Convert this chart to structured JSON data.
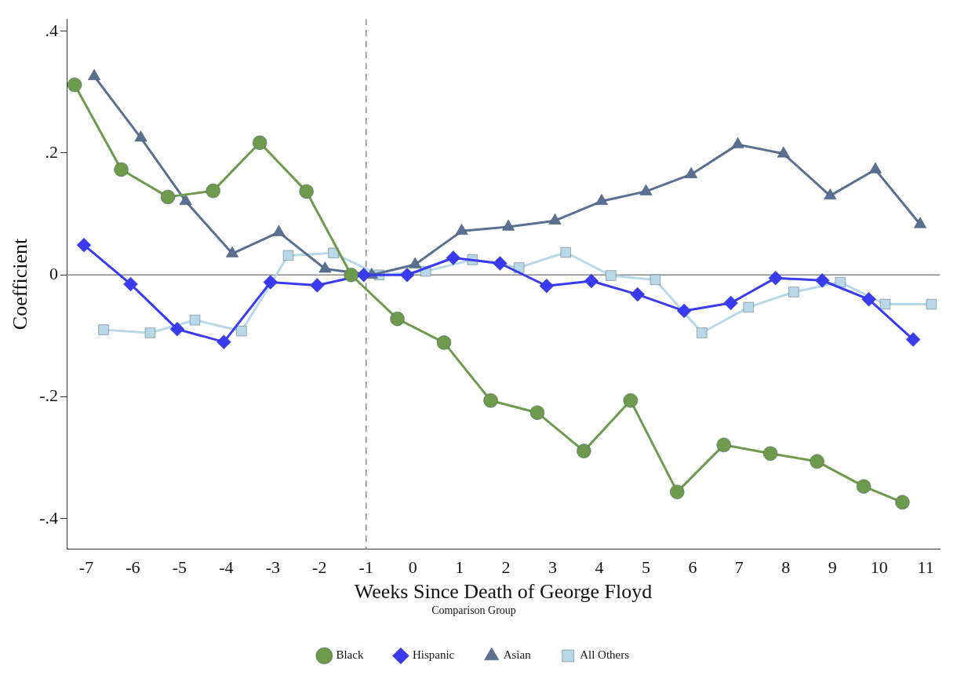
{
  "chart_data": {
    "type": "line",
    "xlabel": "Weeks Since Death of George Floyd",
    "ylabel": "Coefficient",
    "legend_title": "Comparison Group",
    "legend": "bottom",
    "grid": false,
    "xlim": [
      -7.42,
      11.3
    ],
    "xticks": [
      -7,
      -6,
      -5,
      -4,
      -3,
      -2,
      -1,
      0,
      1,
      2,
      3,
      4,
      5,
      6,
      7,
      8,
      9,
      10,
      11
    ],
    "ylim": [
      -0.45,
      0.42
    ],
    "yticks": [
      {
        "value": -0.4,
        "label": "-.4"
      },
      {
        "value": -0.2,
        "label": "-.2"
      },
      0,
      {
        "value": 0.2,
        "label": ".2"
      },
      {
        "value": 0.4,
        "label": ".4"
      }
    ],
    "ref_lines": [
      {
        "axis": "x",
        "value": -1,
        "line_style": "dashed",
        "color": "#888888"
      },
      {
        "axis": "y",
        "value": 0,
        "line_style": "solid",
        "color": "#888888"
      }
    ],
    "series": [
      {
        "name": "Black",
        "color": "#6e9a4e",
        "marker": "circle",
        "x": [
          -7.25,
          -6.25,
          -5.25,
          -4.28,
          -3.28,
          -2.28,
          -1.32,
          -0.33,
          0.67,
          1.67,
          2.67,
          3.67,
          4.67,
          5.67,
          6.67,
          7.67,
          8.67,
          9.67,
          10.5
        ],
        "values": [
          0.312,
          0.173,
          0.128,
          0.138,
          0.217,
          0.137,
          0,
          -0.072,
          -0.111,
          -0.206,
          -0.226,
          -0.289,
          -0.206,
          -0.356,
          -0.279,
          -0.293,
          -0.306,
          -0.347,
          -0.373
        ]
      },
      {
        "name": "Hispanic",
        "color": "#3a3af0",
        "marker": "diamond",
        "x": [
          -7.05,
          -6.05,
          -5.05,
          -4.05,
          -3.05,
          -2.05,
          -1.05,
          -0.12,
          0.87,
          1.87,
          2.87,
          3.83,
          4.82,
          5.82,
          6.82,
          7.78,
          8.78,
          9.78,
          10.73
        ],
        "values": [
          0.049,
          -0.015,
          -0.089,
          -0.11,
          -0.012,
          -0.017,
          0,
          0,
          0.028,
          0.019,
          -0.018,
          -0.01,
          -0.032,
          -0.059,
          -0.046,
          -0.005,
          -0.009,
          -0.04,
          -0.106
        ]
      },
      {
        "name": "Asian",
        "color": "#5a7090",
        "marker": "triangle",
        "x": [
          -6.83,
          -5.83,
          -4.87,
          -3.87,
          -2.87,
          -1.88,
          -0.88,
          0.05,
          1.05,
          2.05,
          3.05,
          4.05,
          5.0,
          5.97,
          6.97,
          7.95,
          8.95,
          9.92,
          10.88
        ],
        "values": [
          0.326,
          0.225,
          0.121,
          0.035,
          0.07,
          0.01,
          0,
          0.017,
          0.072,
          0.079,
          0.089,
          0.121,
          0.137,
          0.165,
          0.214,
          0.199,
          0.13,
          0.173,
          0.083
        ]
      },
      {
        "name": "All Others",
        "color": "#b8d8e8",
        "marker": "square",
        "x": [
          -6.63,
          -5.63,
          -4.67,
          -3.67,
          -2.67,
          -1.7,
          -0.72,
          0.28,
          1.28,
          2.28,
          3.28,
          4.25,
          5.2,
          6.2,
          7.2,
          8.17,
          9.17,
          10.13,
          11.12
        ],
        "values": [
          -0.09,
          -0.095,
          -0.074,
          -0.092,
          0.032,
          0.036,
          0,
          0.006,
          0.025,
          0.012,
          0.037,
          -0.001,
          -0.008,
          -0.095,
          -0.053,
          -0.028,
          -0.012,
          -0.048,
          -0.048
        ]
      }
    ]
  }
}
